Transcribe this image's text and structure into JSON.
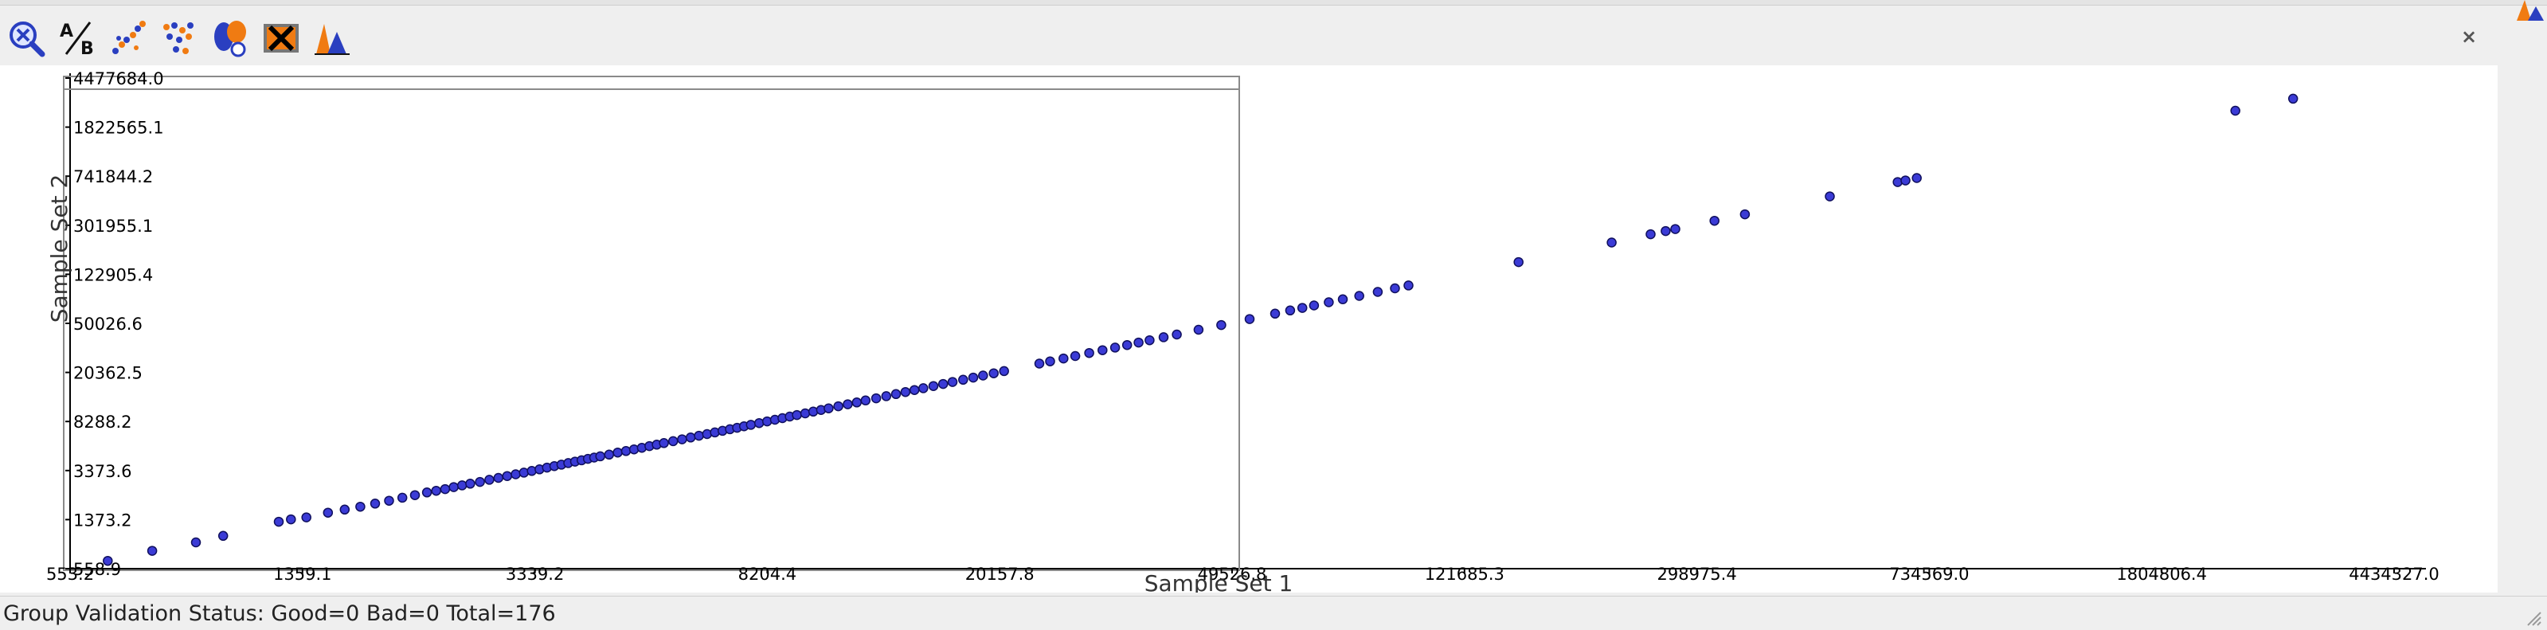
{
  "toolbar": {
    "icons": [
      "zoom-icon",
      "a-over-b-icon",
      "scatter-icon",
      "cluster-icon",
      "group-icon",
      "delete-icon",
      "histogram-icon"
    ]
  },
  "status": {
    "text": "Group Validation Status: Good=0 Bad=0 Total=176"
  },
  "colors": {
    "point_fill": "#3b3bd6",
    "point_stroke": "#10105e",
    "accent_orange": "#f07b12",
    "accent_blue": "#2a3fc0"
  },
  "chart_data": {
    "type": "scatter",
    "xlabel": "Sample Set 1",
    "ylabel": "Sample Set 2",
    "x_scale": "log",
    "y_scale": "log",
    "xlim": [
      553.2,
      4434327.0
    ],
    "ylim": [
      558.9,
      4477684.0
    ],
    "x_ticks": [
      "553.2",
      "1359.1",
      "3339.2",
      "8204.4",
      "20157.8",
      "49526.8",
      "121685.3",
      "298975.4",
      "734569.0",
      "1804806.4",
      "4434327.0"
    ],
    "y_ticks": [
      "558.9",
      "1373.2",
      "3373.6",
      "8288.2",
      "20362.5",
      "50026.6",
      "122905.4",
      "301955.1",
      "741844.2",
      "1822565.1",
      "4477684.0"
    ],
    "grid": false,
    "legend": "none",
    "points": [
      [
        640,
        645
      ],
      [
        760,
        775
      ],
      [
        900,
        905
      ],
      [
        1000,
        1020
      ],
      [
        1240,
        1320
      ],
      [
        1300,
        1380
      ],
      [
        1380,
        1430
      ],
      [
        1500,
        1560
      ],
      [
        1600,
        1650
      ],
      [
        1700,
        1740
      ],
      [
        1800,
        1840
      ],
      [
        1900,
        1940
      ],
      [
        2000,
        2050
      ],
      [
        2100,
        2150
      ],
      [
        2200,
        2260
      ],
      [
        2280,
        2330
      ],
      [
        2360,
        2400
      ],
      [
        2440,
        2490
      ],
      [
        2520,
        2570
      ],
      [
        2600,
        2650
      ],
      [
        2700,
        2740
      ],
      [
        2800,
        2850
      ],
      [
        2900,
        2950
      ],
      [
        3000,
        3050
      ],
      [
        3100,
        3150
      ],
      [
        3200,
        3250
      ],
      [
        3300,
        3350
      ],
      [
        3400,
        3450
      ],
      [
        3500,
        3560
      ],
      [
        3600,
        3660
      ],
      [
        3700,
        3760
      ],
      [
        3800,
        3870
      ],
      [
        3900,
        3970
      ],
      [
        4000,
        4070
      ],
      [
        4100,
        4180
      ],
      [
        4200,
        4280
      ],
      [
        4300,
        4380
      ],
      [
        4450,
        4520
      ],
      [
        4600,
        4690
      ],
      [
        4750,
        4820
      ],
      [
        4900,
        4970
      ],
      [
        5050,
        5120
      ],
      [
        5200,
        5280
      ],
      [
        5350,
        5420
      ],
      [
        5500,
        5580
      ],
      [
        5700,
        5780
      ],
      [
        5900,
        5980
      ],
      [
        6100,
        6180
      ],
      [
        6300,
        6380
      ],
      [
        6500,
        6580
      ],
      [
        6700,
        6790
      ],
      [
        6900,
        6990
      ],
      [
        7100,
        7190
      ],
      [
        7300,
        7390
      ],
      [
        7500,
        7590
      ],
      [
        7700,
        7800
      ],
      [
        7950,
        8050
      ],
      [
        8200,
        8300
      ],
      [
        8450,
        8560
      ],
      [
        8700,
        8810
      ],
      [
        8950,
        9070
      ],
      [
        9200,
        9330
      ],
      [
        9500,
        9620
      ],
      [
        9800,
        9930
      ],
      [
        10100,
        10240
      ],
      [
        10400,
        10550
      ],
      [
        10800,
        10950
      ],
      [
        11200,
        11360
      ],
      [
        11600,
        11750
      ],
      [
        12000,
        12180
      ],
      [
        12500,
        12680
      ],
      [
        13000,
        13190
      ],
      [
        13500,
        13700
      ],
      [
        14000,
        14220
      ],
      [
        14500,
        14740
      ],
      [
        15000,
        15260
      ],
      [
        15600,
        15870
      ],
      [
        16200,
        16480
      ],
      [
        16800,
        17100
      ],
      [
        17500,
        17800
      ],
      [
        18200,
        18520
      ],
      [
        18900,
        19240
      ],
      [
        19700,
        20050
      ],
      [
        20500,
        20880
      ],
      [
        23500,
        23950
      ],
      [
        24500,
        24950
      ],
      [
        25800,
        26300
      ],
      [
        27000,
        27500
      ],
      [
        28500,
        29050
      ],
      [
        30000,
        30600
      ],
      [
        31500,
        32100
      ],
      [
        33000,
        33650
      ],
      [
        34500,
        35200
      ],
      [
        36000,
        36700
      ],
      [
        38000,
        38800
      ],
      [
        40000,
        40800
      ],
      [
        43500,
        44500
      ],
      [
        47500,
        48500
      ],
      [
        53000,
        54100
      ],
      [
        58500,
        59800
      ],
      [
        62000,
        63400
      ],
      [
        65000,
        66400
      ],
      [
        68000,
        69500
      ],
      [
        72000,
        73600
      ],
      [
        76000,
        77700
      ],
      [
        81000,
        82800
      ],
      [
        87000,
        89000
      ],
      [
        93000,
        95100
      ],
      [
        98000,
        100200
      ],
      [
        150000,
        153600
      ],
      [
        215000,
        220100
      ],
      [
        250000,
        256000
      ],
      [
        265000,
        271300
      ],
      [
        275000,
        281600
      ],
      [
        320000,
        327700
      ],
      [
        360000,
        368600
      ],
      [
        500000,
        512000
      ],
      [
        650000,
        666000
      ],
      [
        670000,
        686000
      ],
      [
        700000,
        717000
      ],
      [
        2400000,
        2460000
      ],
      [
        3000000,
        3070000
      ]
    ]
  }
}
